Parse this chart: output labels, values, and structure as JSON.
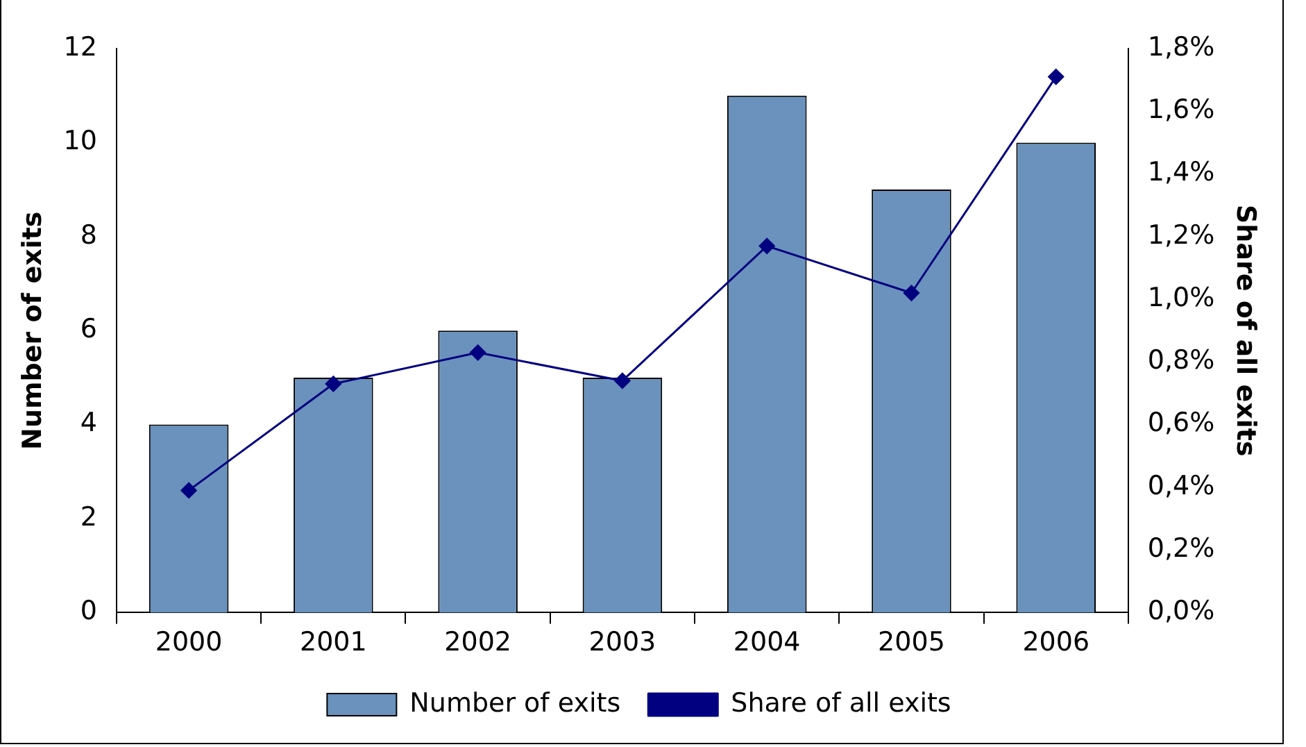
{
  "chart_data": {
    "type": "bar",
    "categories": [
      "2000",
      "2001",
      "2002",
      "2003",
      "2004",
      "2005",
      "2006"
    ],
    "series": [
      {
        "name": "Number of exits",
        "color": "#6a92bd",
        "values": [
          4,
          5,
          6,
          5,
          11,
          9,
          10
        ]
      },
      {
        "name": "Share of all exits",
        "type": "line",
        "axis": "y2",
        "color": "#000080",
        "values": [
          0.39,
          0.73,
          0.83,
          0.74,
          1.17,
          1.02,
          1.71
        ]
      }
    ],
    "ylabel": "Number of exits",
    "y2label": "Share of all exits",
    "ylim": [
      0,
      12
    ],
    "yticks": [
      0,
      2,
      4,
      6,
      8,
      10,
      12
    ],
    "y2lim": [
      0,
      1.8
    ],
    "y2ticks": [
      {
        "value": 0,
        "label": "0,0%"
      },
      {
        "value": 0.2,
        "label": "0,2%"
      },
      {
        "value": 0.4,
        "label": "0,4%"
      },
      {
        "value": 0.6,
        "label": "0,6%"
      },
      {
        "value": 0.8,
        "label": "0,8%"
      },
      {
        "value": 1.0,
        "label": "1,0%"
      },
      {
        "value": 1.2,
        "label": "1,2%"
      },
      {
        "value": 1.4,
        "label": "1,4%"
      },
      {
        "value": 1.6,
        "label": "1,6%"
      },
      {
        "value": 1.8,
        "label": "1,8%"
      }
    ],
    "grid": false,
    "legend": "bottom",
    "marker": "diamond",
    "line_style": "solid"
  }
}
